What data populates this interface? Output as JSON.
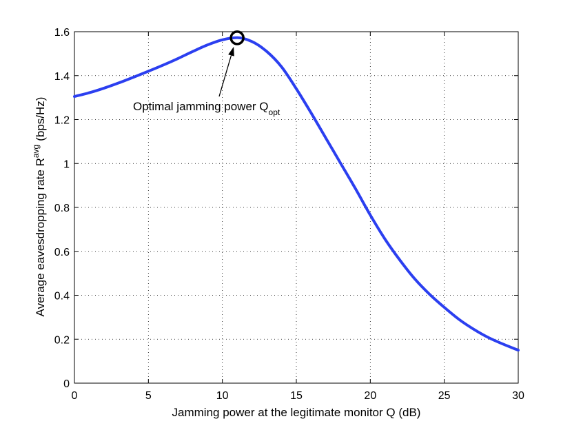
{
  "chart_data": {
    "type": "line",
    "title": "",
    "xlabel": "Jamming power at the legitimate monitor Q (dB)",
    "ylabel": {
      "text": "Average eavesdropping rate R",
      "superscript": "avg",
      "units": "(bps/Hz)"
    },
    "xlim": [
      0,
      30
    ],
    "ylim": [
      0,
      1.6
    ],
    "xticks": [
      0,
      5,
      10,
      15,
      20,
      25,
      30
    ],
    "xtick_labels": [
      "0",
      "5",
      "10",
      "15",
      "20",
      "25",
      "30"
    ],
    "yticks": [
      0,
      0.2,
      0.4,
      0.6,
      0.8,
      1.0,
      1.2,
      1.4,
      1.6
    ],
    "ytick_labels": [
      "0",
      "0.2",
      "0.4",
      "0.6",
      "0.8",
      "1",
      "1.2",
      "1.4",
      "1.6"
    ],
    "grid": true,
    "series": [
      {
        "name": "R_avg",
        "color": "#2b3ff0",
        "x": [
          0,
          1,
          2,
          3,
          4,
          5,
          6,
          7,
          8,
          9,
          10,
          11,
          12,
          13,
          14,
          15,
          16,
          17,
          18,
          19,
          20,
          21,
          22,
          23,
          24,
          25,
          26,
          27,
          28,
          29,
          30
        ],
        "y": [
          1.305,
          1.322,
          1.343,
          1.367,
          1.393,
          1.42,
          1.448,
          1.478,
          1.51,
          1.54,
          1.563,
          1.573,
          1.555,
          1.51,
          1.44,
          1.34,
          1.23,
          1.115,
          1.0,
          0.885,
          0.765,
          0.655,
          0.56,
          0.475,
          0.405,
          0.345,
          0.29,
          0.245,
          0.207,
          0.177,
          0.15
        ]
      }
    ],
    "annotation": {
      "text": "Optimal jamming power Q",
      "subscript": "opt",
      "marker_x": 11,
      "marker_y": 1.572,
      "marker": "circle",
      "marker_color": "#000000"
    }
  }
}
